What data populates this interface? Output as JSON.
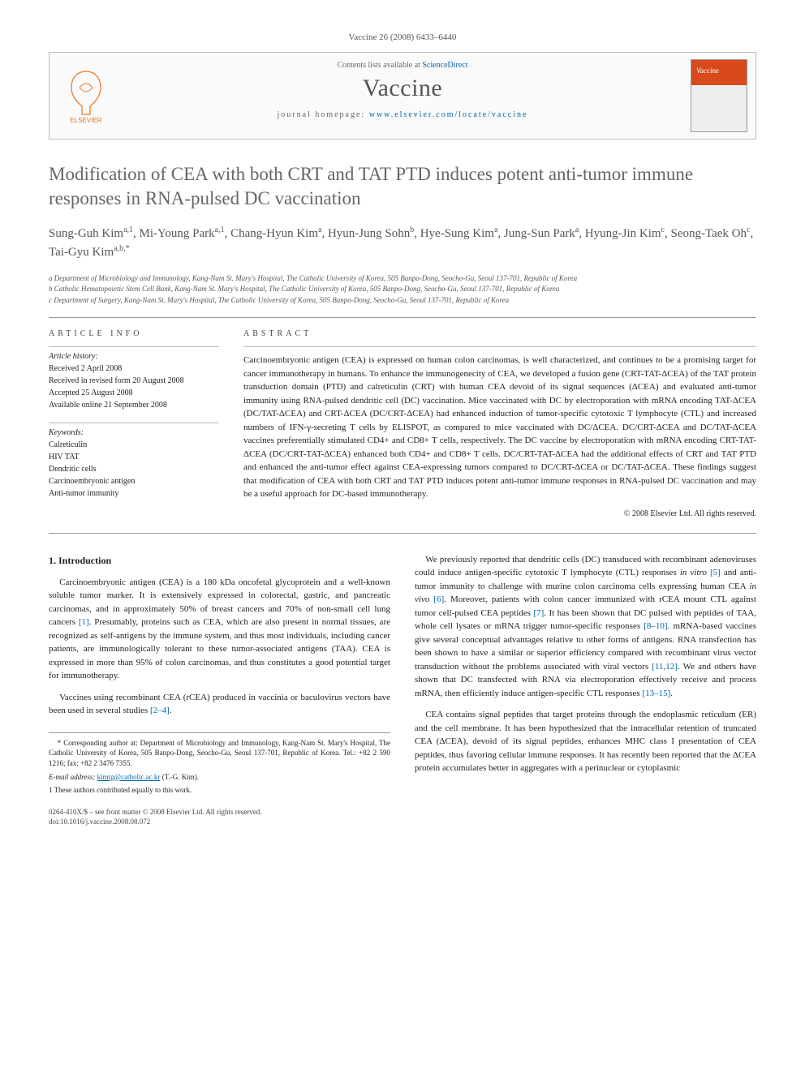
{
  "header": {
    "citation": "Vaccine 26 (2008) 6433–6440",
    "contents_prefix": "Contents lists available at ",
    "contents_link": "ScienceDirect",
    "journal": "Vaccine",
    "homepage_prefix": "journal homepage: ",
    "homepage_url": "www.elsevier.com/locate/vaccine",
    "publisher": "ELSEVIER",
    "cover_label": "Vaccine"
  },
  "title": "Modification of CEA with both CRT and TAT PTD induces potent anti-tumor immune responses in RNA-pulsed DC vaccination",
  "authors_html": "Sung-Guh Kim<sup>a,1</sup>, Mi-Young Park<sup>a,1</sup>, Chang-Hyun Kim<sup>a</sup>, Hyun-Jung Sohn<sup>b</sup>, Hye-Sung Kim<sup>a</sup>, Jung-Sun Park<sup>a</sup>, Hyung-Jin Kim<sup>c</sup>, Seong-Taek Oh<sup>c</sup>, Tai-Gyu Kim<sup>a,b,*</sup>",
  "affiliations": [
    "a Department of Microbiology and Immunology, Kang-Nam St. Mary's Hospital, The Catholic University of Korea, 505 Banpo-Dong, Seocho-Gu, Seoul 137-701, Republic of Korea",
    "b Catholic Hematopoietic Stem Cell Bank, Kang-Nam St. Mary's Hospital, The Catholic University of Korea, 505 Banpo-Dong, Seocho-Gu, Seoul 137-701, Republic of Korea",
    "c Department of Surgery, Kang-Nam St. Mary's Hospital, The Catholic University of Korea, 505 Banpo-Dong, Seocho-Gu, Seoul 137-701, Republic of Korea"
  ],
  "article_info": {
    "heading": "ARTICLE INFO",
    "history_label": "Article history:",
    "history": [
      "Received 2 April 2008",
      "Received in revised form 20 August 2008",
      "Accepted 25 August 2008",
      "Available online 21 September 2008"
    ],
    "keywords_label": "Keywords:",
    "keywords": [
      "Calreticulin",
      "HIV TAT",
      "Dendritic cells",
      "Carcinoembryonic antigen",
      "Anti-tumor immunity"
    ]
  },
  "abstract": {
    "heading": "ABSTRACT",
    "text": "Carcinoembryonic antigen (CEA) is expressed on human colon carcinomas, is well characterized, and continues to be a promising target for cancer immunotherapy in humans. To enhance the immunogenecity of CEA, we developed a fusion gene (CRT-TAT-ΔCEA) of the TAT protein transduction domain (PTD) and calreticulin (CRT) with human CEA devoid of its signal sequences (ΔCEA) and evaluated anti-tumor immunity using RNA-pulsed dendritic cell (DC) vaccination. Mice vaccinated with DC by electroporation with mRNA encoding TAT-ΔCEA (DC/TAT-ΔCEA) and CRT-ΔCEA (DC/CRT-ΔCEA) had enhanced induction of tumor-specific cytotoxic T lymphocyte (CTL) and increased numbers of IFN-γ-secreting T cells by ELISPOT, as compared to mice vaccinated with DC/ΔCEA. DC/CRT-ΔCEA and DC/TAT-ΔCEA vaccines preferentially stimulated CD4+ and CD8+ T cells, respectively. The DC vaccine by electroporation with mRNA encoding CRT-TAT-ΔCEA (DC/CRT-TAT-ΔCEA) enhanced both CD4+ and CD8+ T cells. DC/CRT-TAT-ΔCEA had the additional effects of CRT and TAT PTD and enhanced the anti-tumor effect against CEA-expressing tumors compared to DC/CRT-ΔCEA or DC/TAT-ΔCEA. These findings suggest that modification of CEA with both CRT and TAT PTD induces potent anti-tumor immune responses in RNA-pulsed DC vaccination and may be a useful approach for DC-based immunotherapy.",
    "copyright": "© 2008 Elsevier Ltd. All rights reserved."
  },
  "body": {
    "section_num": "1.",
    "section_title": "Introduction",
    "col1": [
      "Carcinoembryonic antigen (CEA) is a 180 kDa oncofetal glycoprotein and a well-known soluble tumor marker. It is extensively expressed in colorectal, gastric, and pancreatic carcinomas, and in approximately 50% of breast cancers and 70% of non-small cell lung cancers [1]. Presumably, proteins such as CEA, which are also present in normal tissues, are recognized as self-antigens by the immune system, and thus most individuals, including cancer patients, are immunologically tolerant to these tumor-associated antigens (TAA). CEA is expressed in more than 95% of colon carcinomas, and thus constitutes a good potential target for immunotherapy.",
      "Vaccines using recombinant CEA (rCEA) produced in vaccinia or baculovirus vectors have been used in several studies [2–4]."
    ],
    "col2": [
      "We previously reported that dendritic cells (DC) transduced with recombinant adenoviruses could induce antigen-specific cytotoxic T lymphocyte (CTL) responses in vitro [5] and anti-tumor immunity to challenge with murine colon carcinoma cells expressing human CEA in vivo [6]. Moreover, patients with colon cancer immunized with rCEA mount CTL against tumor cell-pulsed CEA peptides [7]. It has been shown that DC pulsed with peptides of TAA, whole cell lysates or mRNA trigger tumor-specific responses [8–10]. mRNA-based vaccines give several conceptual advantages relative to other forms of antigens. RNA transfection has been shown to have a similar or superior efficiency compared with recombinant virus vector transduction without the problems associated with viral vectors [11,12]. We and others have shown that DC transfected with RNA via electroporation effectively receive and process mRNA, then efficiently induce antigen-specific CTL responses [13–15].",
      "CEA contains signal peptides that target proteins through the endoplasmic reticulum (ER) and the cell membrane. It has been hypothesized that the intracellular retention of truncated CEA (ΔCEA), devoid of its signal peptides, enhances MHC class I presentation of CEA peptides, thus favoring cellular immune responses. It has recently been reported that the ΔCEA protein accumulates better in aggregates with a perinuclear or cytoplasmic"
    ]
  },
  "footnotes": {
    "corr": "* Corresponding author at: Department of Microbiology and Immunology, Kang-Nam St. Mary's Hospital, The Catholic University of Korea, 505 Banpo-Dong, Seocho-Gu, Seoul 137-701, Republic of Korea. Tel.: +82 2 590 1216; fax: +82 2 3476 7355.",
    "email_label": "E-mail address: ",
    "email": "kimtg@catholic.ac.kr",
    "email_suffix": " (T.-G. Kim).",
    "equal": "1 These authors contributed equally to this work."
  },
  "doi": {
    "line1": "0264-410X/$ – see front matter © 2008 Elsevier Ltd. All rights reserved.",
    "line2": "doi:10.1016/j.vaccine.2008.08.072"
  },
  "colors": {
    "link": "#0066aa",
    "elsevier_orange": "#e9711c",
    "text_gray": "#555555",
    "rule": "#999999"
  }
}
